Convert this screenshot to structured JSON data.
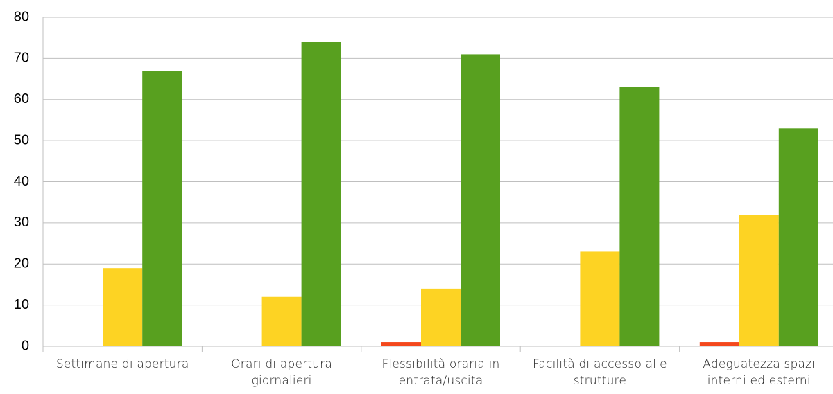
{
  "chart_data": {
    "type": "bar",
    "categories": [
      "Settimane di apertura",
      "Orari di apertura giornalieri",
      "Flessibilità oraria in entrata/uscita",
      "Facilità di accesso alle strutture",
      "Adeguatezza spazi interni ed esterni"
    ],
    "series": [
      {
        "color": "#f4481c",
        "values": [
          0,
          0,
          1,
          0,
          1
        ]
      },
      {
        "color": "#fdd323",
        "values": [
          19,
          12,
          14,
          23,
          32
        ]
      },
      {
        "color": "#58a01f",
        "values": [
          67,
          74,
          71,
          63,
          53
        ]
      }
    ],
    "ylim": [
      0,
      80
    ],
    "yticks": [
      0,
      10,
      20,
      30,
      40,
      50,
      60,
      70,
      80
    ],
    "grid": true
  }
}
